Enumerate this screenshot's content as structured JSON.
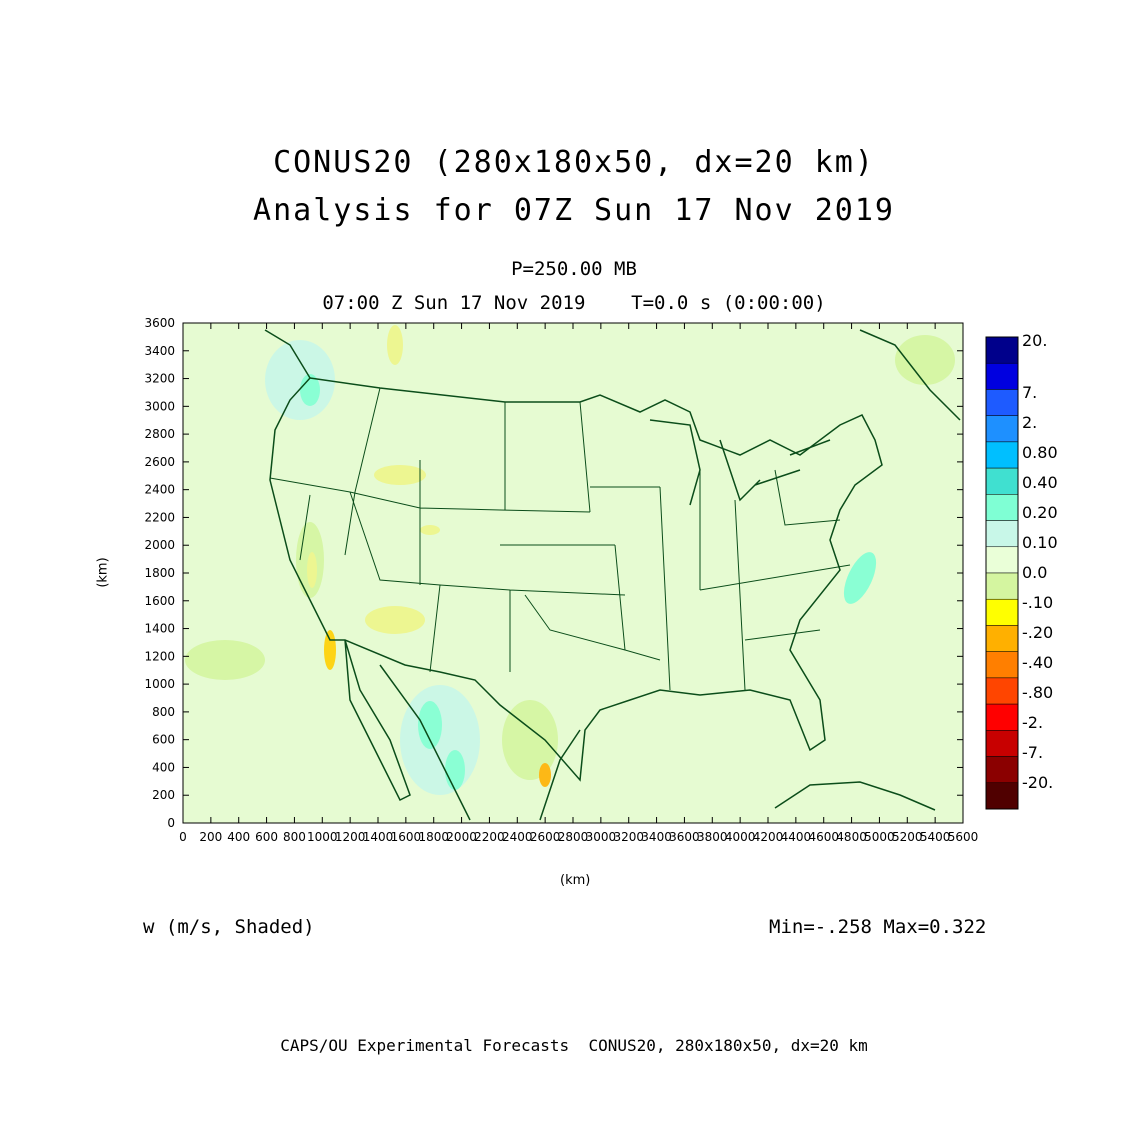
{
  "header": {
    "title_line1": "CONUS20 (280x180x50, dx=20 km)",
    "title_line2": "Analysis for 07Z Sun 17 Nov 2019",
    "level": "P=250.00 MB",
    "time": "07:00 Z Sun 17 Nov 2019    T=0.0 s (0:00:00)"
  },
  "axes": {
    "x_label": "(km)",
    "y_label": "(km)",
    "x_ticks": [
      "0",
      "200",
      "400",
      "600",
      "800",
      "1000",
      "1200",
      "1400",
      "1600",
      "1800",
      "2000",
      "2200",
      "2400",
      "2600",
      "2800",
      "3000",
      "3200",
      "3400",
      "3600",
      "3800",
      "4000",
      "4200",
      "4400",
      "4600",
      "4800",
      "5000",
      "5200",
      "5400",
      "5600"
    ],
    "y_ticks": [
      "0",
      "200",
      "400",
      "600",
      "800",
      "1000",
      "1200",
      "1400",
      "1600",
      "1800",
      "2000",
      "2200",
      "2400",
      "2600",
      "2800",
      "3000",
      "3200",
      "3400",
      "3600"
    ],
    "x_range": [
      0,
      5600
    ],
    "y_range": [
      0,
      3600
    ]
  },
  "colorbar": {
    "labels": [
      "20.",
      "7.",
      "2.",
      "0.80",
      "0.40",
      "0.20",
      "0.10",
      "0.0",
      "-.10",
      "-.20",
      "-.40",
      "-.80",
      "-2.",
      "-7.",
      "-20."
    ],
    "colors": [
      "#00008b",
      "#0000e0",
      "#1e5bff",
      "#1e90ff",
      "#00bfff",
      "#40e0d0",
      "#7fffd4",
      "#c8f7e8",
      "#eaffd8",
      "#d4f5a0",
      "#ffff00",
      "#ffb000",
      "#ff7f00",
      "#ff4500",
      "#ff0000",
      "#c80000",
      "#8b0000",
      "#500000"
    ]
  },
  "field": {
    "variable": "w (m/s, Shaded)",
    "stats": "Min=-.258 Max=0.322"
  },
  "footer": "CAPS/OU Experimental Forecasts  CONUS20, 280x180x50, dx=20 km",
  "colors": {
    "map_background": "#e6fbd2",
    "boundary": "#0b4d1a"
  }
}
